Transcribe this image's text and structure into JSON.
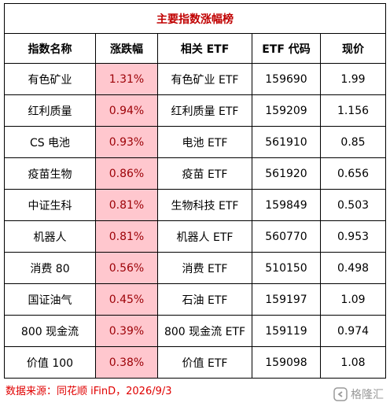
{
  "header": {
    "title": "主要指数涨幅榜"
  },
  "table": {
    "columns": [
      "指数名称",
      "涨跌幅",
      "相关 ETF",
      "ETF 代码",
      "现价"
    ],
    "rows": [
      [
        "有色矿业",
        "1.31%",
        "有色矿业 ETF",
        "159690",
        "1.99"
      ],
      [
        "红利质量",
        "0.94%",
        "红利质量 ETF",
        "159209",
        "1.156"
      ],
      [
        "CS 电池",
        "0.93%",
        "电池 ETF",
        "561910",
        "0.85"
      ],
      [
        "疫苗生物",
        "0.86%",
        "疫苗 ETF",
        "561920",
        "0.656"
      ],
      [
        "中证生科",
        "0.81%",
        "生物科技 ETF",
        "159849",
        "0.503"
      ],
      [
        "机器人",
        "0.81%",
        "机器人 ETF",
        "560770",
        "0.953"
      ],
      [
        "消费 80",
        "0.56%",
        "消费 ETF",
        "510150",
        "0.498"
      ],
      [
        "国证油气",
        "0.45%",
        "石油 ETF",
        "159197",
        "1.09"
      ],
      [
        "800 现金流",
        "0.39%",
        "800 现金流 ETF",
        "159119",
        "0.974"
      ],
      [
        "价值 100",
        "0.38%",
        "价值 ETF",
        "159098",
        "1.08"
      ]
    ]
  },
  "footer": {
    "source": "数据来源：同花顺 iFinD，2026/9/3",
    "watermark": "格隆汇"
  }
}
